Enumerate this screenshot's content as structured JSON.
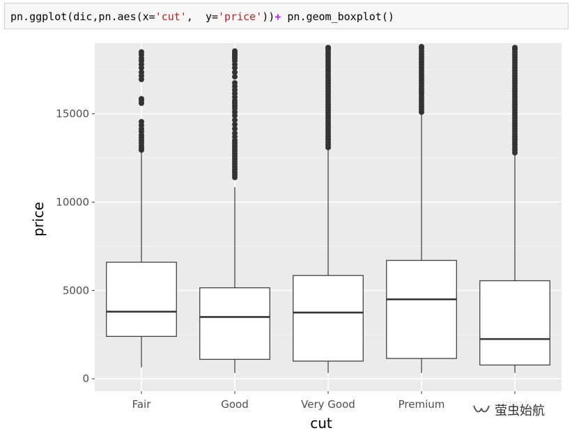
{
  "code": {
    "segments": [
      {
        "text": "pn.ggplot(dic,pn.aes(x=",
        "kind": "plain"
      },
      {
        "text": "'cut'",
        "kind": "str"
      },
      {
        "text": ",  y=",
        "kind": "plain"
      },
      {
        "text": "'price'",
        "kind": "str"
      },
      {
        "text": "))",
        "kind": "plain"
      },
      {
        "text": "+",
        "kind": "op"
      },
      {
        "text": " pn.geom_boxplot()",
        "kind": "plain"
      }
    ]
  },
  "watermark": {
    "text": "萤虫始航",
    "icon": "wechat-channel-icon"
  },
  "colors": {
    "panel_bg": "#ebebeb",
    "grid_major": "#ffffff",
    "grid_minor": "#f5f5f5",
    "box_fill": "#ffffff",
    "box_line": "#333333",
    "outlier": "#333333"
  },
  "chart_data": {
    "type": "boxplot",
    "title": "",
    "xlabel": "cut",
    "ylabel": "price",
    "ylim": [
      -700,
      19000
    ],
    "yticks": [
      0,
      5000,
      10000,
      15000
    ],
    "yticklabels": [
      "0",
      "5000",
      "10000",
      "15000"
    ],
    "categories": [
      "Fair",
      "Good",
      "Very Good",
      "Premium",
      "Ideal"
    ],
    "boxes": [
      {
        "category": "Fair",
        "whisker_low": 650,
        "q1": 2400,
        "median": 3800,
        "q3": 6600,
        "whisker_high": 12900,
        "outliers": [
          12950,
          13050,
          13200,
          13350,
          13500,
          13650,
          13800,
          14000,
          14150,
          14350,
          14550,
          15600,
          15750,
          15850,
          16950,
          17150,
          17350,
          17600,
          17800,
          18000,
          18150,
          18350,
          18500
        ]
      },
      {
        "category": "Good",
        "whisker_low": 330,
        "q1": 1100,
        "median": 3500,
        "q3": 5150,
        "whisker_high": 10850,
        "outliers": [
          11400,
          11550,
          11700,
          11850,
          12000,
          12150,
          12300,
          12450,
          12600,
          12750,
          12900,
          13050,
          13200,
          13350,
          13500,
          13700,
          13900,
          14150,
          14400,
          14650,
          14900,
          15100,
          15300,
          15450,
          15600,
          15750,
          15950,
          16150,
          16350,
          16550,
          16750,
          17100,
          17350,
          17600,
          17800,
          18000,
          18150,
          18250,
          18350,
          18450,
          18550
        ]
      },
      {
        "category": "Very Good",
        "whisker_low": 330,
        "q1": 1000,
        "median": 3750,
        "q3": 5850,
        "whisker_high": 13050,
        "outliers": [
          13100,
          13250,
          13400,
          13550,
          13700,
          13850,
          14000,
          14150,
          14300,
          14450,
          14600,
          14750,
          14900,
          15050,
          15200,
          15350,
          15500,
          15650,
          15800,
          15950,
          16100,
          16250,
          16400,
          16550,
          16700,
          16850,
          17000,
          17150,
          17300,
          17450,
          17600,
          17750,
          17900,
          18050,
          18200,
          18350,
          18500,
          18650,
          18750
        ]
      },
      {
        "category": "Premium",
        "whisker_low": 330,
        "q1": 1150,
        "median": 4500,
        "q3": 6700,
        "whisker_high": 15000,
        "outliers": [
          15100,
          15250,
          15400,
          15550,
          15700,
          15850,
          16000,
          16150,
          16300,
          16450,
          16600,
          16750,
          16900,
          17050,
          17200,
          17350,
          17500,
          17650,
          17800,
          17950,
          18100,
          18250,
          18400,
          18550,
          18700,
          18800
        ]
      },
      {
        "category": "Ideal",
        "whisker_low": 330,
        "q1": 780,
        "median": 2250,
        "q3": 5550,
        "whisker_high": 12700,
        "outliers": [
          12800,
          12950,
          13100,
          13250,
          13400,
          13550,
          13700,
          13850,
          14000,
          14150,
          14300,
          14450,
          14600,
          14750,
          14900,
          15050,
          15200,
          15350,
          15500,
          15650,
          15800,
          15950,
          16100,
          16250,
          16400,
          16550,
          16700,
          16850,
          17000,
          17150,
          17300,
          17450,
          17600,
          17750,
          17900,
          18050,
          18200,
          18350,
          18500,
          18650,
          18750
        ]
      }
    ]
  }
}
